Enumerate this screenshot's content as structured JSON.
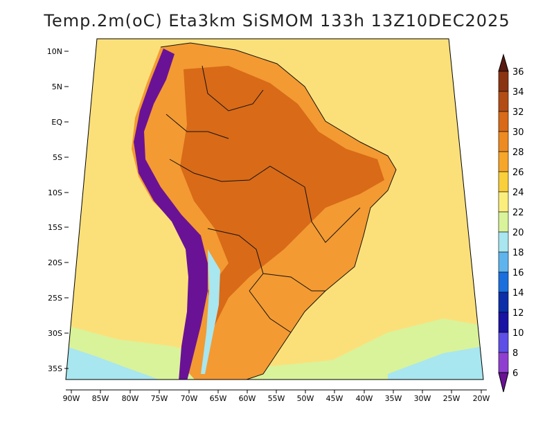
{
  "title": "Temp.2m(oC) Eta3km SiSMOM 133h 13Z10DEC2025",
  "lat_ticks": [
    "10N",
    "5N",
    "EQ",
    "5S",
    "10S",
    "15S",
    "20S",
    "25S",
    "30S",
    "35S"
  ],
  "lon_ticks": [
    "90W",
    "85W",
    "80W",
    "75W",
    "70W",
    "65W",
    "60W",
    "55W",
    "50W",
    "45W",
    "40W",
    "35W",
    "30W",
    "25W",
    "20W"
  ],
  "colorbar": {
    "labels": [
      "36",
      "34",
      "32",
      "30",
      "28",
      "26",
      "24",
      "22",
      "20",
      "18",
      "16",
      "14",
      "12",
      "10",
      "8",
      "6"
    ],
    "colors": [
      "#5a1a10",
      "#8a3412",
      "#b34d16",
      "#d86a18",
      "#ee8a22",
      "#f6a628",
      "#f9cf3a",
      "#fbee7c",
      "#d9f39a",
      "#a8e6f0",
      "#5fb4ee",
      "#1a6fdd",
      "#0c2ea8",
      "#1a12a2",
      "#5e4fe6",
      "#8f3fcf",
      "#6a1296"
    ]
  },
  "colors": {
    "ocean": "#fbe07a",
    "ocean_cool": "#d9f39a",
    "ocean_cold": "#a8e6f0",
    "land_warm": "#f39a32",
    "land_hot": "#d86a18",
    "andes": "#6a1296",
    "boundary": "#111111"
  }
}
